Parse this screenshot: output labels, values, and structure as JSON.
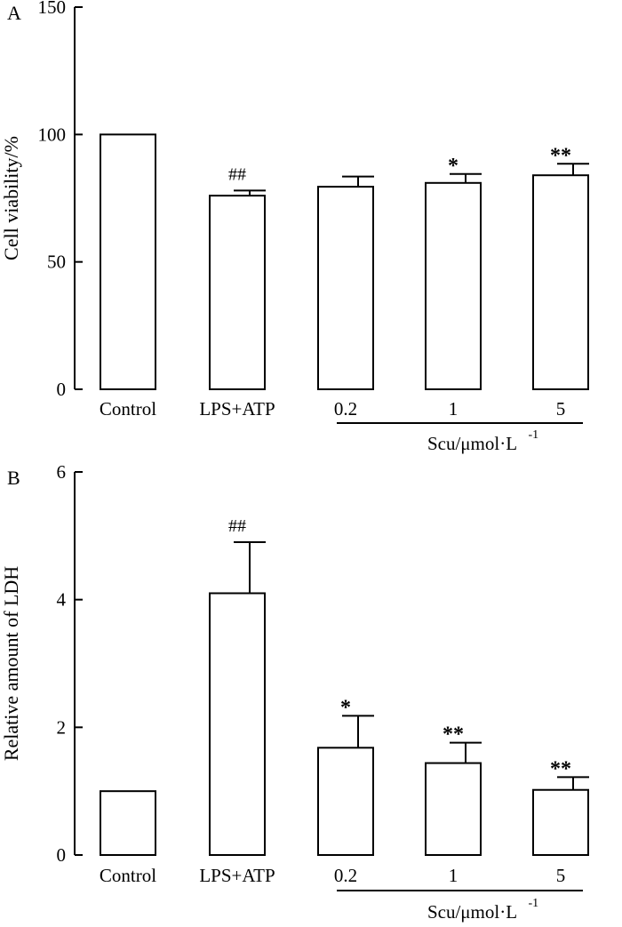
{
  "chart_data": [
    {
      "type": "bar",
      "panel_label": "A",
      "ylabel": "Cell viability/%",
      "ylim": [
        0,
        150
      ],
      "yticks": [
        "0",
        "50",
        "100",
        "150"
      ],
      "categories": [
        "Control",
        "LPS+ATP",
        "0.2",
        "1",
        "5"
      ],
      "values": [
        100,
        76,
        79.5,
        81,
        84
      ],
      "errors": [
        0,
        2,
        4,
        3.5,
        4.5
      ],
      "annotations": [
        "",
        "##",
        "",
        "*",
        "**"
      ],
      "group_label": {
        "text": "Scu/μmol·L",
        "superscript": "-1",
        "spans": [
          "0.2",
          "5"
        ]
      }
    },
    {
      "type": "bar",
      "panel_label": "B",
      "ylabel": "Relative amount of LDH",
      "ylim": [
        0,
        6
      ],
      "yticks": [
        "0",
        "2",
        "4",
        "6"
      ],
      "categories": [
        "Control",
        "LPS+ATP",
        "0.2",
        "1",
        "5"
      ],
      "values": [
        1.0,
        4.1,
        1.68,
        1.44,
        1.02
      ],
      "errors": [
        0,
        0.8,
        0.5,
        0.32,
        0.2
      ],
      "annotations": [
        "",
        "##",
        "*",
        "**",
        "**"
      ],
      "group_label": {
        "text": "Scu/μmol·L",
        "superscript": "-1",
        "spans": [
          "0.2",
          "5"
        ]
      }
    }
  ]
}
